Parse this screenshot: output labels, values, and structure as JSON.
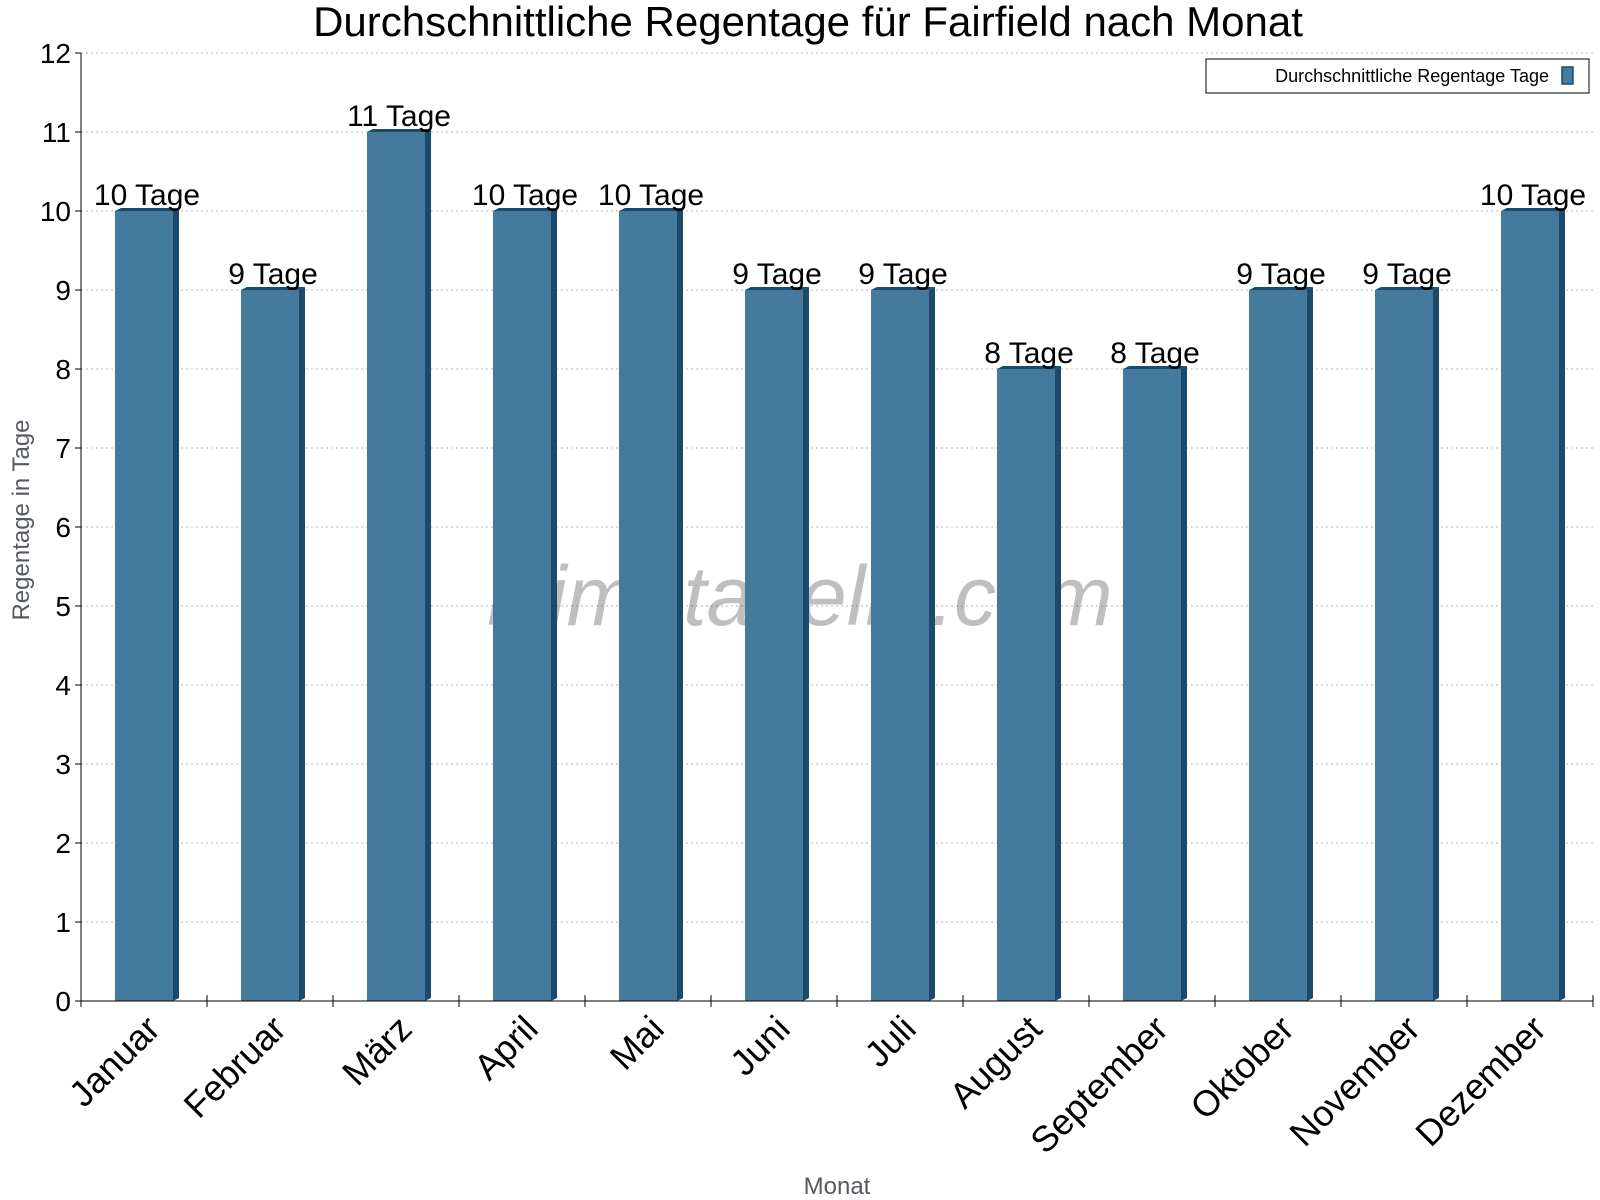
{
  "chart_data": {
    "type": "bar",
    "title": "Durchschnittliche Regentage für Fairfield nach Monat",
    "xlabel": "Monat",
    "ylabel": "Regentage in Tage",
    "categories": [
      "Januar",
      "Februar",
      "März",
      "April",
      "Mai",
      "Juni",
      "Juli",
      "August",
      "September",
      "Oktober",
      "November",
      "Dezember"
    ],
    "series": [
      {
        "name": "Durchschnittliche Regentage Tage",
        "values": [
          10,
          9,
          11,
          10,
          10,
          9,
          9,
          8,
          8,
          9,
          9,
          10
        ],
        "data_labels": [
          "10 Tage",
          "9 Tage",
          "11 Tage",
          "10 Tage",
          "10 Tage",
          "9 Tage",
          "9 Tage",
          "8 Tage",
          "8 Tage",
          "9 Tage",
          "9 Tage",
          "10 Tage"
        ],
        "color": "#447a9d",
        "side_color": "#1b4a6b"
      }
    ],
    "ylim": [
      0,
      12
    ],
    "yticks": [
      "0",
      "1",
      "2",
      "3",
      "4",
      "5",
      "6",
      "7",
      "8",
      "9",
      "10",
      "11",
      "12"
    ],
    "grid": true,
    "legend_position": "top-right"
  },
  "watermark": "klimatabelle.com"
}
